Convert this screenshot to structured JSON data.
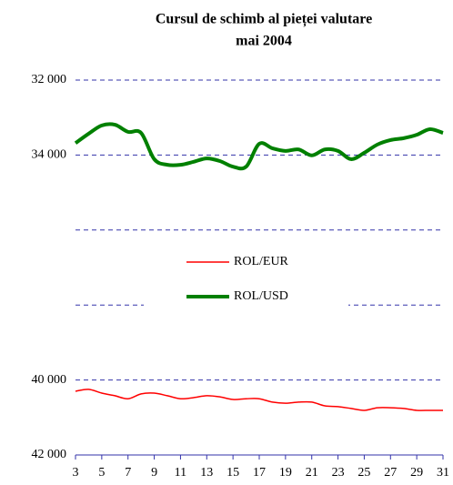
{
  "chart_data": {
    "type": "line",
    "title": [
      "Cursul de schimb al pieței valutare",
      "mai 2004"
    ],
    "x": [
      3,
      4,
      5,
      6,
      7,
      8,
      9,
      10,
      11,
      12,
      13,
      14,
      15,
      16,
      17,
      18,
      19,
      20,
      21,
      22,
      23,
      24,
      25,
      26,
      27,
      28,
      29,
      30,
      31
    ],
    "series": [
      {
        "name": "ROL/EUR",
        "color": "#ff0000",
        "width": 1.5,
        "values": [
          40300,
          40250,
          40350,
          40420,
          40500,
          40370,
          40350,
          40420,
          40500,
          40470,
          40420,
          40450,
          40520,
          40500,
          40500,
          40590,
          40620,
          40590,
          40590,
          40690,
          40710,
          40760,
          40810,
          40740,
          40740,
          40760,
          40810,
          40810,
          40810
        ]
      },
      {
        "name": "ROL/USD",
        "color": "#008000",
        "width": 4,
        "values": [
          33680,
          33430,
          33210,
          33190,
          33380,
          33410,
          34110,
          34260,
          34260,
          34180,
          34090,
          34160,
          34310,
          34310,
          33700,
          33820,
          33890,
          33850,
          34010,
          33850,
          33890,
          34110,
          33940,
          33720,
          33600,
          33550,
          33460,
          33310,
          33410
        ]
      }
    ],
    "xlim": [
      3,
      31
    ],
    "xticks": [
      3,
      5,
      7,
      9,
      11,
      13,
      15,
      17,
      19,
      21,
      23,
      25,
      27,
      29,
      31
    ],
    "ylim": [
      32000,
      42000
    ],
    "y_reversed": true,
    "yticks": [
      {
        "value": 32000,
        "label": "32 000"
      },
      {
        "value": 34000,
        "label": "34 000"
      },
      {
        "value": 36000,
        "label": null
      },
      {
        "value": 38000,
        "label": null
      },
      {
        "value": 40000,
        "label": "40 000"
      },
      {
        "value": 42000,
        "label": "42 000"
      }
    ],
    "grid": true,
    "legend": "center"
  }
}
